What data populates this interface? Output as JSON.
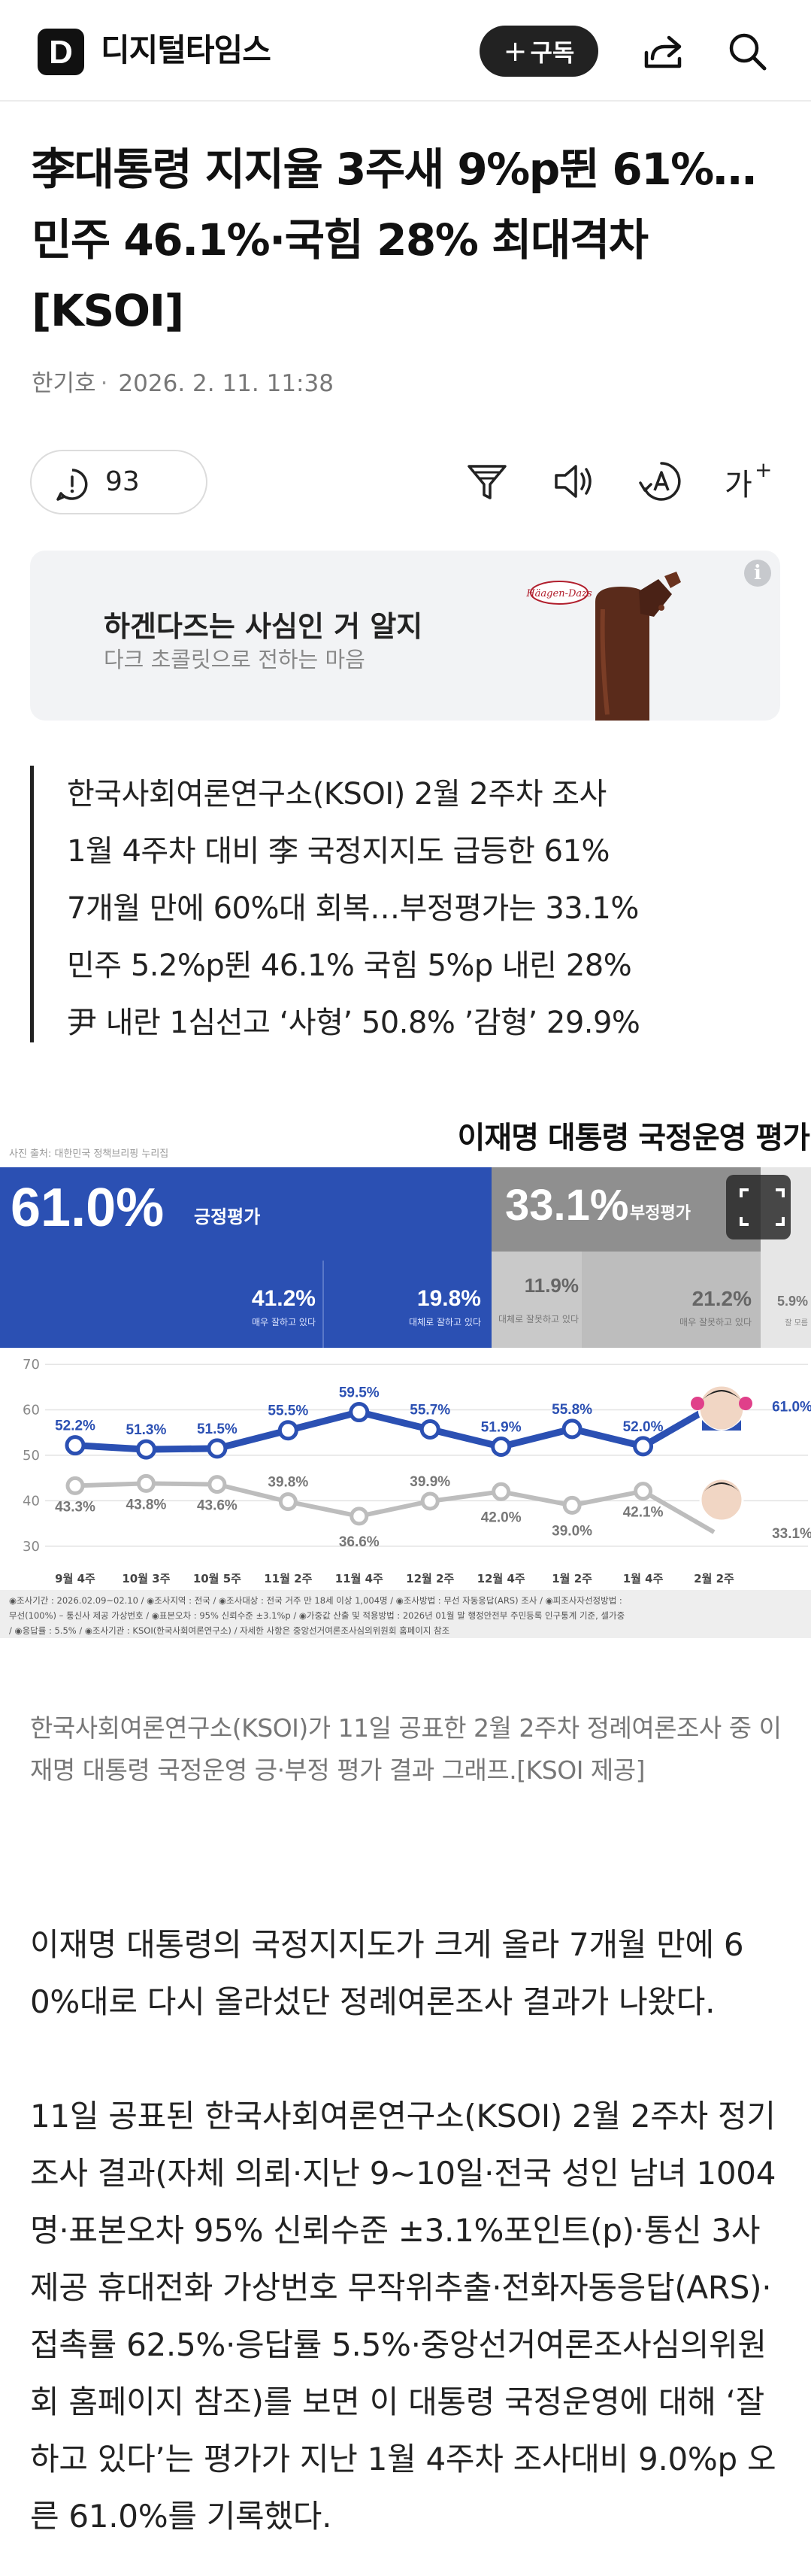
{
  "header": {
    "logo_letter": "D",
    "site_name": "디지털타임스",
    "subscribe_label": "구독",
    "subscribe_plus": "+"
  },
  "article": {
    "title": "李대통령 지지율 3주새 9%p뛴 61%…민주 46.1%·국힘 28% 최대격차 [KSOI]",
    "author": "한기호",
    "date": "2026. 2. 11. 11:38",
    "comment_count": "93",
    "font_size_label": "가",
    "font_size_plus": "+"
  },
  "ad": {
    "title": "하겐다즈는 사심인 거 알지",
    "subtitle": "다크 초콜릿으로 전하는 마음",
    "info": "i",
    "brand": "Häagen-Dazs"
  },
  "summary": [
    "한국사회여론연구소(KSOI) 2월 2주차 조사",
    "1월 4주차 대비 李 국정지지도 급등한 61%",
    "7개월 만에 60%대 회복…부정평가는 33.1%",
    "민주 5.2%p뛴 46.1% 국힘 5%p 내린 28%",
    "尹 내란 1심선고 ‘사형’ 50.8% ’감형’ 29.9%"
  ],
  "chart_data": {
    "type": "line",
    "title": "이재명 대통령 국정운영 평가",
    "source_note": "사진 출처: 대한민국 정책브리핑 누리집",
    "positive": {
      "value": "61.0%",
      "label": "긍정평가"
    },
    "negative": {
      "value": "33.1%",
      "label": "부정평가"
    },
    "breakdown": [
      {
        "value": "41.2%",
        "label": "매우 잘하고 있다"
      },
      {
        "value": "19.8%",
        "label": "대체로 잘하고 있다"
      },
      {
        "value": "11.9%",
        "label": "대체로 잘못하고 있다"
      },
      {
        "value": "21.2%",
        "label": "매우 잘못하고 있다"
      },
      {
        "value": "5.9%",
        "label": "잘 모름"
      }
    ],
    "categories": [
      "9월 4주",
      "10월 3주",
      "10월 5주",
      "11월 2주",
      "11월 4주",
      "12월 2주",
      "12월 4주",
      "1월 2주",
      "1월 4주",
      "2월 2주"
    ],
    "y_ticks": [
      "70",
      "60",
      "50",
      "40",
      "30"
    ],
    "ylim": [
      25,
      72
    ],
    "series": [
      {
        "values": [
          52.2,
          51.3,
          51.5,
          55.5,
          59.5,
          55.7,
          51.9,
          55.8,
          52.0,
          61.0
        ],
        "labels": [
          "52.2%",
          "51.3%",
          "51.5%",
          "55.5%",
          "59.5%",
          "55.7%",
          "51.9%",
          "55.8%",
          "52.0%",
          "61.0%"
        ],
        "color": "#2b50b3"
      },
      {
        "values": [
          43.3,
          43.8,
          43.6,
          39.8,
          36.6,
          39.9,
          42.0,
          39.0,
          42.1,
          33.1
        ],
        "labels": [
          "43.3%",
          "43.8%",
          "43.6%",
          "39.8%",
          "36.6%",
          "39.9%",
          "42.0%",
          "39.0%",
          "42.1%",
          "33.1%"
        ],
        "color": "#bdbdbd"
      }
    ],
    "footnote_1": "◉조사기간 : 2026.02.09~02.10 / ◉조사지역 : 전국 / ◉조사대상 : 전국 거주 만 18세 이상 1,004명 / ◉조사방법 : 무선 자동응답(ARS) 조사 / ◉피조사자선정방법 :",
    "footnote_2": "무선(100%) – 통신사 제공 가상번호 / ◉표본오차 : 95% 신뢰수준 ±3.1%p / ◉가중값 산출 및 적용방법 : 2026년 01월 말 행정안전부 주민등록 인구통계 기준, 셀가중",
    "footnote_3": "/ ◉응답률 : 5.5% / ◉조사기관 : KSOI(한국사회여론연구소) / 자세한 사항은 중앙선거여론조사심의위원회 홈페이지 참조"
  },
  "caption": "한국사회여론연구소(KSOI)가 11일 공표한 2월 2주차 정례여론조사 중 이재명 대통령 국정운영 긍·부정 평가 결과 그래프.[KSOI 제공]",
  "body": [
    "이재명 대통령의 국정지지도가 크게 올라 7개월 만에 60%대로 다시 올라섰단 정례여론조사 결과가 나왔다.",
    "11일 공표된 한국사회여론연구소(KSOI) 2월 2주차 정기조사 결과(자체 의뢰·지난 9~10일·전국 성인 남녀 1004명·표본오차 95% 신뢰수준 ±3.1%포인트(p)·통신 3사 제공 휴대전화 가상번호 무작위추출·전화자동응답(ARS)·접촉률 62.5%·응답률 5.5%·중앙선거여론조사심의위원회 홈페이지 참조)를 보면 이 대통령 국정운영에 대해 ‘잘하고 있다’는 평가가 지난 1월 4주차 조사대비 9.0%p 오른 61.0%를 기록했다."
  ]
}
